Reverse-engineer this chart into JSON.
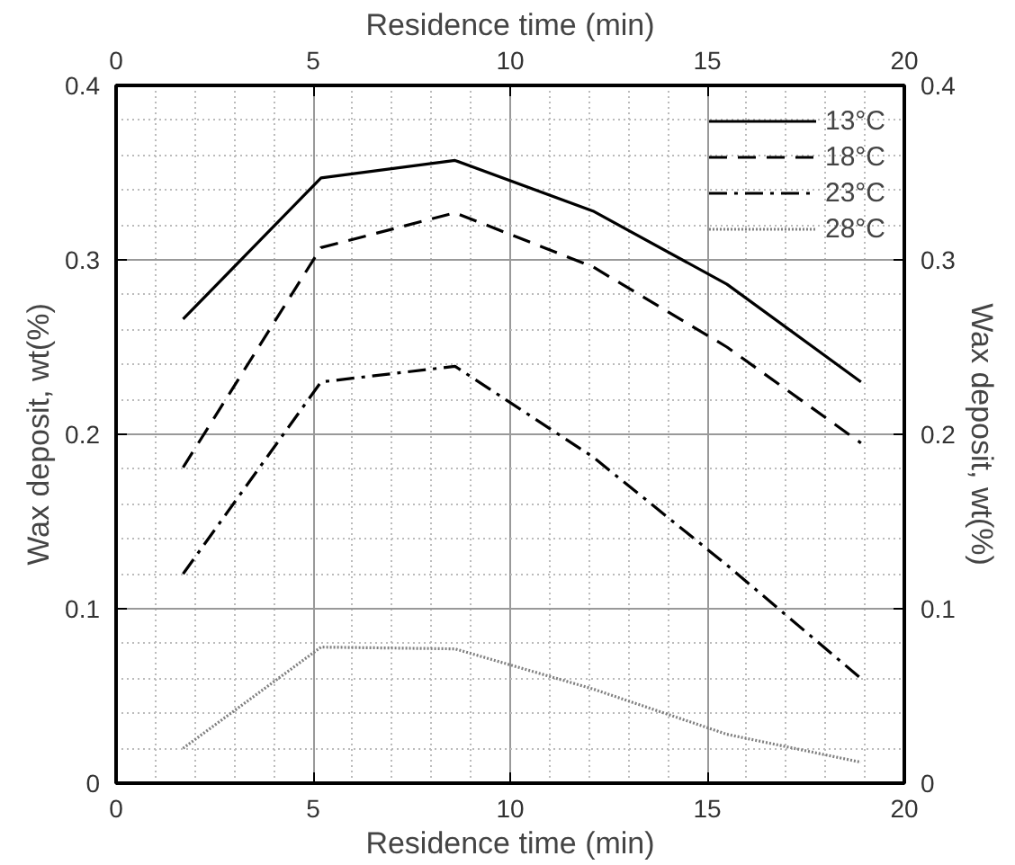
{
  "chart_data": {
    "type": "line",
    "xlabel": "Residence time (min)",
    "x2label": "Residence time (min)",
    "ylabel": "Wax deposit, wt(%)",
    "y2label": "Wax deposit, wt(%)",
    "x": [
      1.7,
      5.2,
      8.6,
      12.1,
      15.5,
      18.9
    ],
    "series": [
      {
        "name": "13°C",
        "color": "#000000",
        "line_style": "solid",
        "values": [
          0.266,
          0.347,
          0.357,
          0.328,
          0.286,
          0.23
        ]
      },
      {
        "name": "18°C",
        "color": "#000000",
        "line_style": "dashed",
        "values": [
          0.181,
          0.307,
          0.327,
          0.296,
          0.25,
          0.195
        ]
      },
      {
        "name": "23°C",
        "color": "#000000",
        "line_style": "dashdot",
        "values": [
          0.12,
          0.23,
          0.239,
          0.187,
          0.125,
          0.06
        ]
      },
      {
        "name": "28°C",
        "color": "#808080",
        "line_style": "dotted",
        "values": [
          0.02,
          0.078,
          0.077,
          0.054,
          0.028,
          0.012
        ]
      }
    ],
    "xlim": [
      0,
      20
    ],
    "xticks": [
      0,
      5,
      10,
      15,
      20
    ],
    "x2lim": [
      0,
      20
    ],
    "x2ticks": [
      0,
      5,
      10,
      15,
      20
    ],
    "ylim": [
      0,
      0.4
    ],
    "yticks": [
      0,
      0.1,
      0.2,
      0.3,
      0.4
    ],
    "y2lim": [
      0,
      0.4
    ],
    "y2ticks": [
      0,
      0.1,
      0.2,
      0.3,
      0.4
    ],
    "grid": true,
    "legend": "top right",
    "marker": "none"
  }
}
